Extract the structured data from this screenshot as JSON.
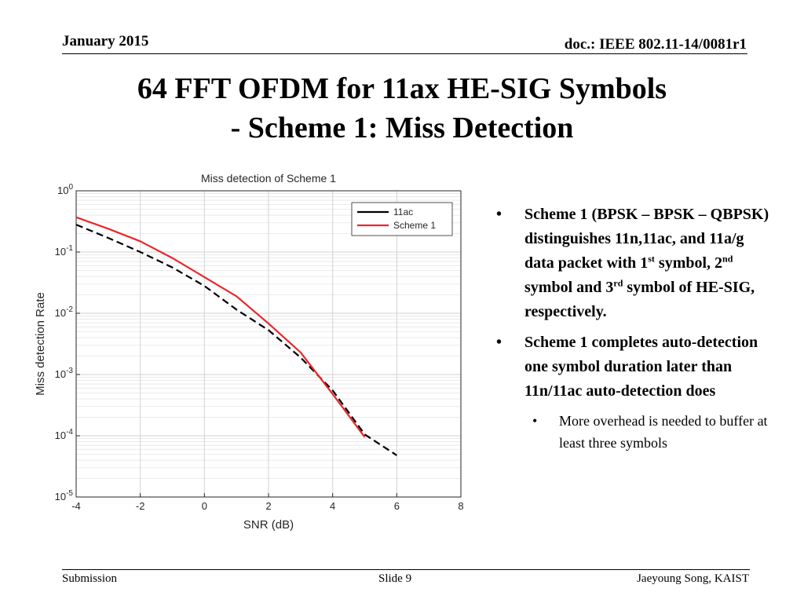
{
  "header": {
    "date": "January 2015",
    "doc": "doc.: IEEE 802.11-14/0081r1"
  },
  "title": {
    "line1": "64 FFT OFDM for 11ax HE-SIG Symbols",
    "line2": "- Scheme 1: Miss Detection"
  },
  "chart_data": {
    "type": "line",
    "title": "Miss detection of Scheme 1",
    "xlabel": "SNR (dB)",
    "ylabel": "Miss detection Rate",
    "xlim": [
      -4,
      8
    ],
    "ylim": [
      1e-05,
      1
    ],
    "yscale": "log",
    "grid": true,
    "legend_position": "top-right",
    "x_ticks": [
      "-4",
      "-2",
      "0",
      "2",
      "4",
      "6",
      "8"
    ],
    "y_ticks": [
      {
        "base": "10",
        "exp": "0"
      },
      {
        "base": "10",
        "exp": "-1"
      },
      {
        "base": "10",
        "exp": "-2"
      },
      {
        "base": "10",
        "exp": "-3"
      },
      {
        "base": "10",
        "exp": "-4"
      },
      {
        "base": "10",
        "exp": "-5"
      }
    ],
    "series": [
      {
        "name": "11ac",
        "color": "#000000",
        "style": "dashed",
        "x": [
          -4,
          -3,
          -2,
          -1,
          0,
          1,
          2,
          3,
          4,
          5,
          6
        ],
        "y": [
          0.28,
          0.17,
          0.1,
          0.056,
          0.028,
          0.0115,
          0.0053,
          0.0019,
          0.00055,
          0.000105,
          4.8e-05
        ]
      },
      {
        "name": "Scheme 1",
        "color": "#e8282b",
        "style": "solid",
        "x": [
          -4,
          -3,
          -2,
          -1,
          0,
          1,
          2,
          3,
          4,
          5
        ],
        "y": [
          0.37,
          0.24,
          0.15,
          0.08,
          0.039,
          0.019,
          0.0068,
          0.0023,
          0.00048,
          9.5e-05
        ]
      }
    ]
  },
  "bullets": [
    {
      "parts": [
        {
          "t": "Scheme 1 (BPSK – BPSK – QBPSK) distinguishes 11n,11ac, and 11a/g data packet with 1"
        },
        {
          "t": "st",
          "sup": true
        },
        {
          "t": " symbol, 2"
        },
        {
          "t": "nd",
          "sup": true
        },
        {
          "t": " symbol and 3"
        },
        {
          "t": "rd",
          "sup": true
        },
        {
          "t": " symbol of HE-SIG, respectively."
        }
      ]
    },
    {
      "parts": [
        {
          "t": "Scheme 1 completes auto-detection one symbol duration later than 11n/11ac auto-detection does"
        }
      ]
    }
  ],
  "sub_bullets": [
    {
      "text": "More overhead is needed to buffer at least three symbols"
    }
  ],
  "bullet_glyph": "•",
  "footer": {
    "left": "Submission",
    "center": "Slide 9",
    "right": "Jaeyoung Song, KAIST"
  }
}
